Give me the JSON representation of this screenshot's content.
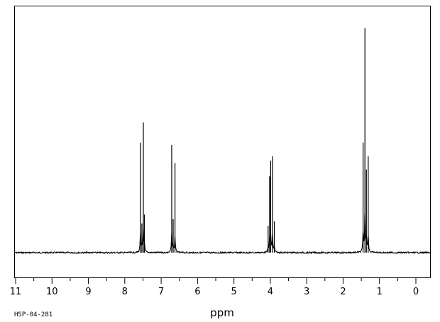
{
  "chart_data": {
    "type": "line",
    "xlabel": "ppm",
    "sample_code": "HSP-04-281",
    "x_reversed": true,
    "xlim": [
      11,
      0
    ],
    "x_major_ticks": [
      11,
      10,
      9,
      8,
      7,
      6,
      5,
      4,
      3,
      2,
      1,
      0
    ],
    "x_minor_step": 0.5,
    "grid": false,
    "legend": "none",
    "line_color": "#000000",
    "series": [
      {
        "peaks": [
          {
            "x": 7.57,
            "y": 0.49
          },
          {
            "x": 7.53,
            "y": 0.13
          },
          {
            "x": 7.49,
            "y": 0.58
          },
          {
            "x": 7.46,
            "y": 0.17
          },
          {
            "x": 6.71,
            "y": 0.48
          },
          {
            "x": 6.67,
            "y": 0.15
          },
          {
            "x": 6.62,
            "y": 0.4
          },
          {
            "x": 4.06,
            "y": 0.12
          },
          {
            "x": 4.02,
            "y": 0.34
          },
          {
            "x": 3.99,
            "y": 0.41
          },
          {
            "x": 3.94,
            "y": 0.43
          },
          {
            "x": 3.89,
            "y": 0.14
          },
          {
            "x": 1.45,
            "y": 0.49
          },
          {
            "x": 1.4,
            "y": 1.0
          },
          {
            "x": 1.36,
            "y": 0.37
          },
          {
            "x": 1.31,
            "y": 0.43
          }
        ]
      }
    ]
  }
}
